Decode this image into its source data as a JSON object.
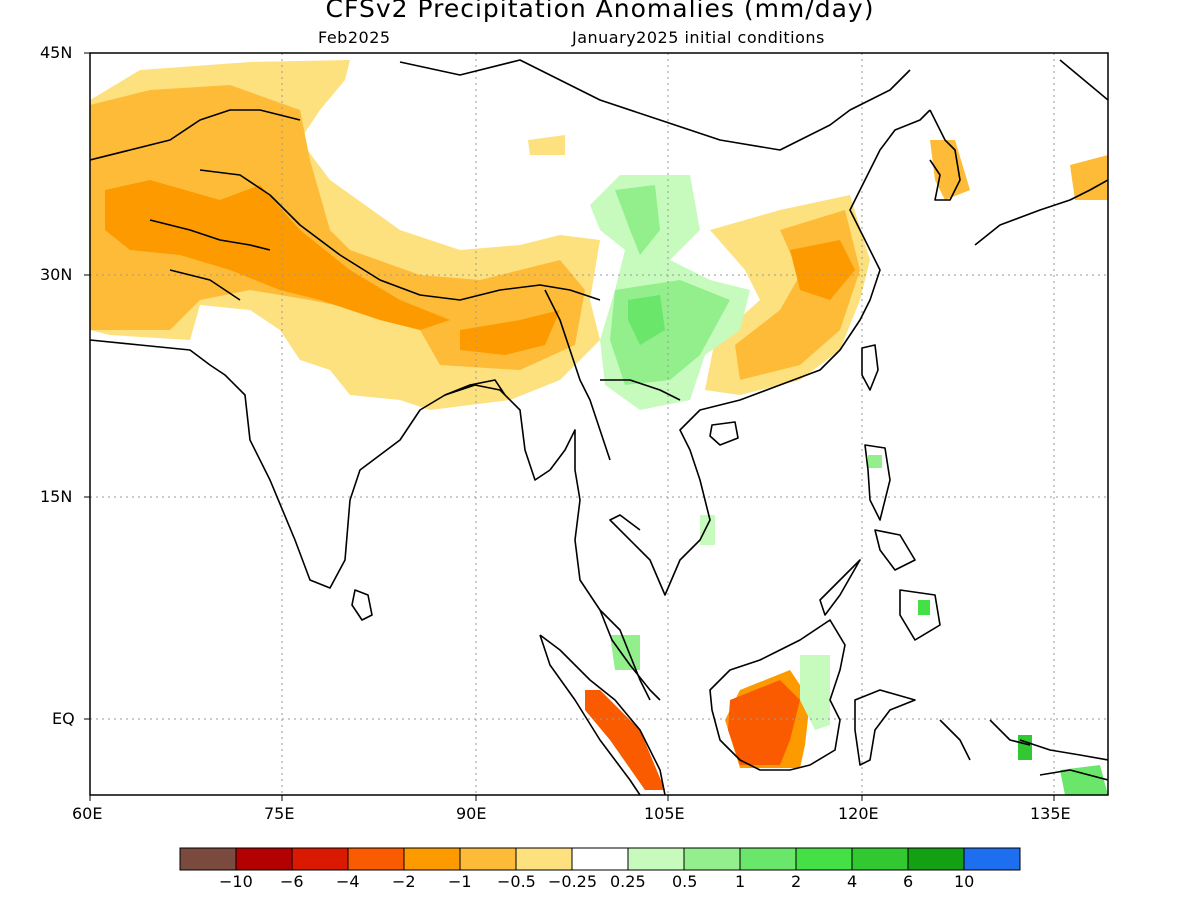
{
  "title": "CFSv2 Precipitation Anomalies (mm/day)",
  "subtitle_left": "Feb2025",
  "subtitle_right": "January2025 initial conditions",
  "map": {
    "lon_range": [
      "60E",
      "140E"
    ],
    "lat_range": [
      "5S",
      "45N"
    ],
    "y_ticks": [
      "45N",
      "30N",
      "15N",
      "EQ"
    ],
    "x_ticks": [
      "60E",
      "75E",
      "90E",
      "105E",
      "120E",
      "135E"
    ],
    "grid": true
  },
  "colorbar": {
    "colors": [
      "#7a4a3e",
      "#b30000",
      "#d91a00",
      "#fa5a00",
      "#fd9a00",
      "#fdbb38",
      "#fde17f",
      "#ffffff",
      "#c7fbbd",
      "#93ee8c",
      "#6ae66a",
      "#45e045",
      "#31c831",
      "#13a013",
      "#1e6ef0"
    ],
    "labels": [
      "−10",
      "−6",
      "−4",
      "−2",
      "−1",
      "−0.5",
      "−0.25",
      "0.25",
      "0.5",
      "1",
      "2",
      "4",
      "6",
      "10"
    ]
  }
}
